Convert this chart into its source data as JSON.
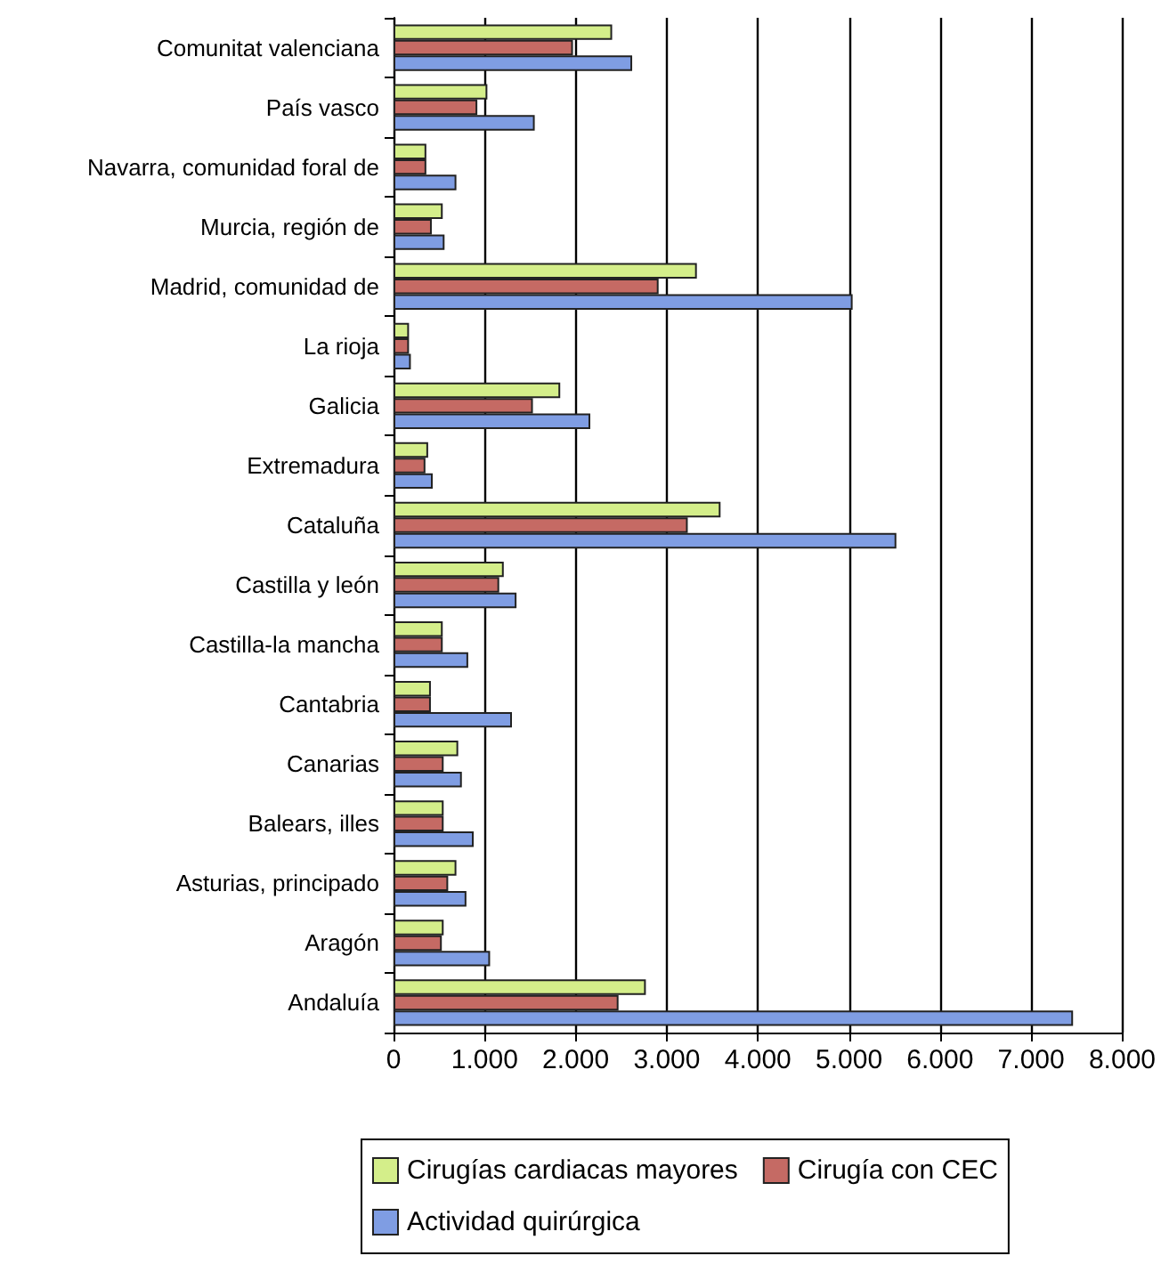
{
  "chart_data": {
    "type": "bar",
    "orientation": "horizontal",
    "categories": [
      "Comunitat valenciana",
      "País vasco",
      "Navarra, comunidad foral de",
      "Murcia, región de",
      "Madrid, comunidad de",
      "La rioja",
      "Galicia",
      "Extremadura",
      "Cataluña",
      "Castilla y león",
      "Castilla-la mancha",
      "Cantabria",
      "Canarias",
      "Balears, illes",
      "Asturias, principado",
      "Aragón",
      "Andaluía"
    ],
    "series": [
      {
        "name": "Cirugías cardiacas mayores",
        "color": "#d4ee8a",
        "values": [
          2400,
          1030,
          360,
          540,
          3330,
          170,
          1830,
          380,
          3590,
          1210,
          540,
          410,
          710,
          550,
          690,
          550,
          2770
        ]
      },
      {
        "name": "Cirugía con CEC",
        "color": "#c56a64",
        "values": [
          1970,
          920,
          360,
          420,
          2910,
          170,
          1530,
          350,
          3230,
          1160,
          540,
          410,
          550,
          550,
          600,
          530,
          2470
        ]
      },
      {
        "name": "Actividad quirúrgica",
        "color": "#7f9de3",
        "values": [
          2620,
          1550,
          690,
          560,
          5040,
          190,
          2160,
          430,
          5520,
          1350,
          820,
          1300,
          750,
          880,
          800,
          1060,
          7460
        ]
      }
    ],
    "xlim": [
      0,
      8000
    ],
    "xticks": [
      {
        "value": 0,
        "label": "0"
      },
      {
        "value": 1000,
        "label": "1.000"
      },
      {
        "value": 2000,
        "label": "2.000"
      },
      {
        "value": 3000,
        "label": "3.000"
      },
      {
        "value": 4000,
        "label": "4.000"
      },
      {
        "value": 5000,
        "label": "5.000"
      },
      {
        "value": 6000,
        "label": "6.000"
      },
      {
        "value": 7000,
        "label": "7.000"
      },
      {
        "value": 8000,
        "label": "8.000"
      }
    ],
    "grid": "x",
    "legend": "bottom"
  }
}
